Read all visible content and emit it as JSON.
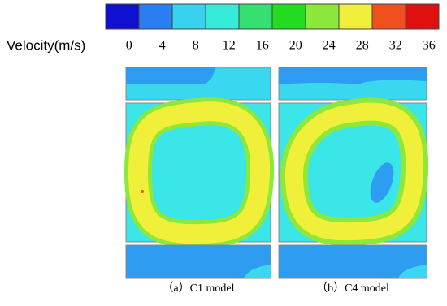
{
  "legend": {
    "label": "Velocity(m/s)",
    "ticks": [
      0,
      4,
      8,
      12,
      16,
      20,
      24,
      28,
      32,
      36
    ],
    "colors": [
      "#1010d0",
      "#2a7ef0",
      "#38d2f0",
      "#34ecd8",
      "#34e070",
      "#22dc22",
      "#8ce83a",
      "#f0f03a",
      "#f05020",
      "#e01010"
    ]
  },
  "panels": [
    {
      "caption": "（a）C1 model"
    },
    {
      "caption": "（b）C4 model"
    }
  ]
}
